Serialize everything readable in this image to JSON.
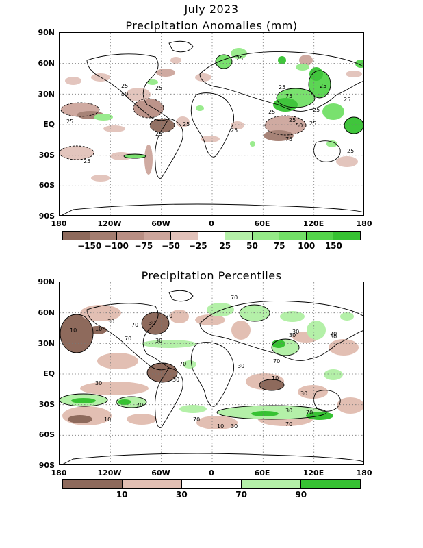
{
  "top": {
    "title_line1": "July 2023",
    "title_line2": "Precipitation Anomalies (mm)",
    "lat_labels": [
      "90N",
      "60N",
      "30N",
      "EQ",
      "30S",
      "60S",
      "90S"
    ],
    "lon_labels": [
      "180",
      "120W",
      "60W",
      "0",
      "60E",
      "120E",
      "180"
    ],
    "colorbar": {
      "colors": [
        "#8e6a5c",
        "#a37d70",
        "#b98f84",
        "#cda69c",
        "#e2c2ba",
        "#ffffff",
        "#b4f0a8",
        "#95ea88",
        "#72e067",
        "#54d44b",
        "#36c232"
      ],
      "labels": [
        "−150",
        "−100",
        "−75",
        "−50",
        "−25",
        "25",
        "50",
        "75",
        "100",
        "150"
      ]
    },
    "contour_labels": [
      "25",
      "25",
      "25",
      "25",
      "25",
      "25",
      "50",
      "75",
      "25",
      "25",
      "25",
      "25",
      "25",
      "25",
      "50",
      "75",
      "25",
      "25",
      "25",
      "25"
    ]
  },
  "bottom": {
    "title": "Precipitation Percentiles",
    "lat_labels": [
      "90N",
      "60N",
      "30N",
      "EQ",
      "30S",
      "60S",
      "90S"
    ],
    "lon_labels": [
      "180",
      "120W",
      "60W",
      "0",
      "60E",
      "120E",
      "180"
    ],
    "colorbar": {
      "colors": [
        "#8e6a5c",
        "#e2bfb3",
        "#ffffff",
        "#b4f0a8",
        "#36c232"
      ],
      "labels": [
        "10",
        "30",
        "70",
        "90"
      ]
    },
    "contour_labels": [
      "10",
      "10",
      "30",
      "30",
      "70",
      "70",
      "30",
      "70",
      "70",
      "30",
      "70",
      "30",
      "10",
      "30",
      "30",
      "70",
      "70",
      "30",
      "10",
      "30",
      "70",
      "70",
      "30",
      "70",
      "70",
      "10",
      "30",
      "30"
    ]
  }
}
